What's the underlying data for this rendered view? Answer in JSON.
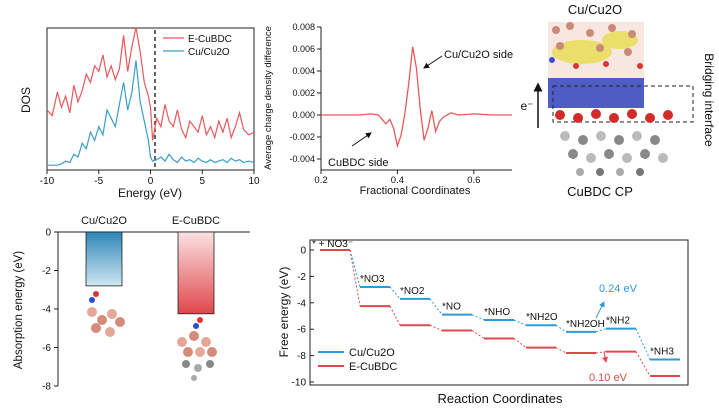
{
  "chart_data": [
    {
      "type": "line",
      "xlabel": "Energy (eV)",
      "ylabel": "DOS",
      "xlim": [
        -10,
        10
      ],
      "xticks": [
        "-10",
        "-5",
        "0",
        "5",
        "10"
      ],
      "legend_position": "top-right",
      "fermi_level": 0,
      "series": [
        {
          "name": "E-CuBDC",
          "color": "#e8585a",
          "x": [
            -10,
            -9.5,
            -9,
            -8.6,
            -8.2,
            -7.8,
            -7.4,
            -7,
            -6.6,
            -6.2,
            -5.8,
            -5.4,
            -5,
            -4.6,
            -4.2,
            -3.8,
            -3.4,
            -3,
            -2.6,
            -2.2,
            -1.8,
            -1.4,
            -1,
            -0.6,
            -0.2,
            0,
            0.2,
            0.6,
            1,
            1.4,
            1.8,
            2.2,
            2.6,
            3,
            3.4,
            3.8,
            4.2,
            4.6,
            5,
            5.4,
            5.8,
            6.2,
            6.6,
            7,
            7.4,
            7.8,
            8.2,
            8.6,
            9,
            9.5,
            10
          ],
          "y": [
            0.42,
            0.38,
            0.55,
            0.44,
            0.52,
            0.4,
            0.6,
            0.48,
            0.56,
            0.68,
            0.62,
            0.74,
            0.7,
            0.82,
            0.66,
            0.74,
            0.64,
            0.72,
            0.96,
            0.7,
            0.88,
            1.02,
            0.84,
            0.62,
            0.52,
            0.44,
            0.2,
            0.36,
            0.3,
            0.46,
            0.34,
            0.3,
            0.42,
            0.28,
            0.22,
            0.34,
            0.3,
            0.26,
            0.38,
            0.24,
            0.3,
            0.22,
            0.34,
            0.26,
            0.36,
            0.22,
            0.3,
            0.4,
            0.28,
            0.24,
            0.26
          ]
        },
        {
          "name": "Cu/Cu2O",
          "color": "#3a9ec9",
          "x": [
            -10,
            -9.5,
            -9,
            -8.6,
            -8.2,
            -7.8,
            -7.4,
            -7,
            -6.6,
            -6.2,
            -5.8,
            -5.4,
            -5,
            -4.6,
            -4.2,
            -3.8,
            -3.4,
            -3,
            -2.6,
            -2.2,
            -1.8,
            -1.4,
            -1,
            -0.6,
            -0.2,
            0,
            0.2,
            0.6,
            1,
            1.4,
            1.8,
            2.2,
            2.6,
            3,
            3.4,
            3.8,
            4.2,
            4.6,
            5,
            5.4,
            5.8,
            6.2,
            6.6,
            7,
            7.4,
            7.8,
            8.2,
            8.6,
            9,
            9.5,
            10
          ],
          "y": [
            0.02,
            0.02,
            0.02,
            0.03,
            0.05,
            0.04,
            0.1,
            0.08,
            0.18,
            0.14,
            0.26,
            0.2,
            0.3,
            0.24,
            0.42,
            0.36,
            0.3,
            0.46,
            0.62,
            0.42,
            0.55,
            0.78,
            0.48,
            0.34,
            0.2,
            0.08,
            0.05,
            0.06,
            0.08,
            0.05,
            0.1,
            0.06,
            0.04,
            0.08,
            0.05,
            0.06,
            0.04,
            0.07,
            0.05,
            0.04,
            0.06,
            0.04,
            0.05,
            0.06,
            0.04,
            0.07,
            0.05,
            0.06,
            0.04,
            0.05,
            0.04
          ]
        }
      ]
    },
    {
      "type": "line",
      "xlabel": "Fractional Coordinates",
      "ylabel": "Average charge density difference",
      "xlim": [
        0.2,
        0.7
      ],
      "ylim": [
        -0.005,
        0.008
      ],
      "xticks": [
        "0.2",
        "0.4",
        "0.6"
      ],
      "yticks": [
        "-0.004",
        "-0.002",
        "0.000",
        "0.002",
        "0.004",
        "0.006",
        "0.008"
      ],
      "annotations": [
        "Cu/Cu2O side",
        "CuBDC side"
      ],
      "series": [
        {
          "color": "#e8585a",
          "x": [
            0.2,
            0.25,
            0.3,
            0.33,
            0.35,
            0.36,
            0.37,
            0.38,
            0.39,
            0.4,
            0.41,
            0.42,
            0.43,
            0.44,
            0.45,
            0.46,
            0.47,
            0.48,
            0.49,
            0.5,
            0.51,
            0.52,
            0.54,
            0.56,
            0.6,
            0.65,
            0.7
          ],
          "y": [
            0,
            0,
            0,
            0.0001,
            0,
            -0.0004,
            -0.0008,
            -0.0004,
            -0.0012,
            -0.0028,
            -0.0018,
            0.0002,
            0.003,
            0.0062,
            0.0042,
            0.0005,
            -0.0023,
            -0.0012,
            0.0004,
            -0.0015,
            -0.0006,
            -0.0002,
            0.0002,
            0,
            0.0001,
            0,
            0
          ]
        }
      ]
    },
    {
      "type": "bar",
      "ylabel": "Absorption energy (eV)",
      "ylim": [
        -8,
        0
      ],
      "yticks": [
        "0",
        "-2",
        "-4",
        "-6",
        "-8"
      ],
      "categories": [
        "Cu/Cu2O",
        "E-CuBDC"
      ],
      "values": [
        -2.8,
        -4.25
      ],
      "colors": [
        "#2e86b8",
        "#e0474c"
      ]
    },
    {
      "type": "line",
      "xlabel": "Reaction Coordinates",
      "ylabel": "Free energy (eV)",
      "ylim": [
        -10,
        1
      ],
      "yticks": [
        "0",
        "-2",
        "-4",
        "-6",
        "-8",
        "-10"
      ],
      "legend_position": "bottom-left",
      "step_labels": [
        "* + NO3⁻",
        "*NO3",
        "*NO2",
        "*NO",
        "*NHO",
        "*NH2O",
        "*NH2OH",
        "*NH2",
        "*NH3"
      ],
      "series": [
        {
          "name": "Cu/Cu2O",
          "color": "#2e9bd6",
          "values": [
            0,
            -2.8,
            -3.7,
            -4.9,
            -5.3,
            -5.7,
            -6.2,
            -5.96,
            -8.3
          ]
        },
        {
          "name": "E-CuBDC",
          "color": "#e0474c",
          "values": [
            0,
            -4.25,
            -5.7,
            -6.1,
            -6.7,
            -7.4,
            -7.8,
            -7.7,
            -9.55
          ]
        }
      ],
      "annotations": [
        "0.24 eV",
        "0.10 eV"
      ]
    }
  ],
  "illustration": {
    "title": "Cu/Cu2O",
    "subtitle": "CuBDC CP",
    "side_label": "Bridging interface",
    "arrow_label": "e⁻"
  }
}
